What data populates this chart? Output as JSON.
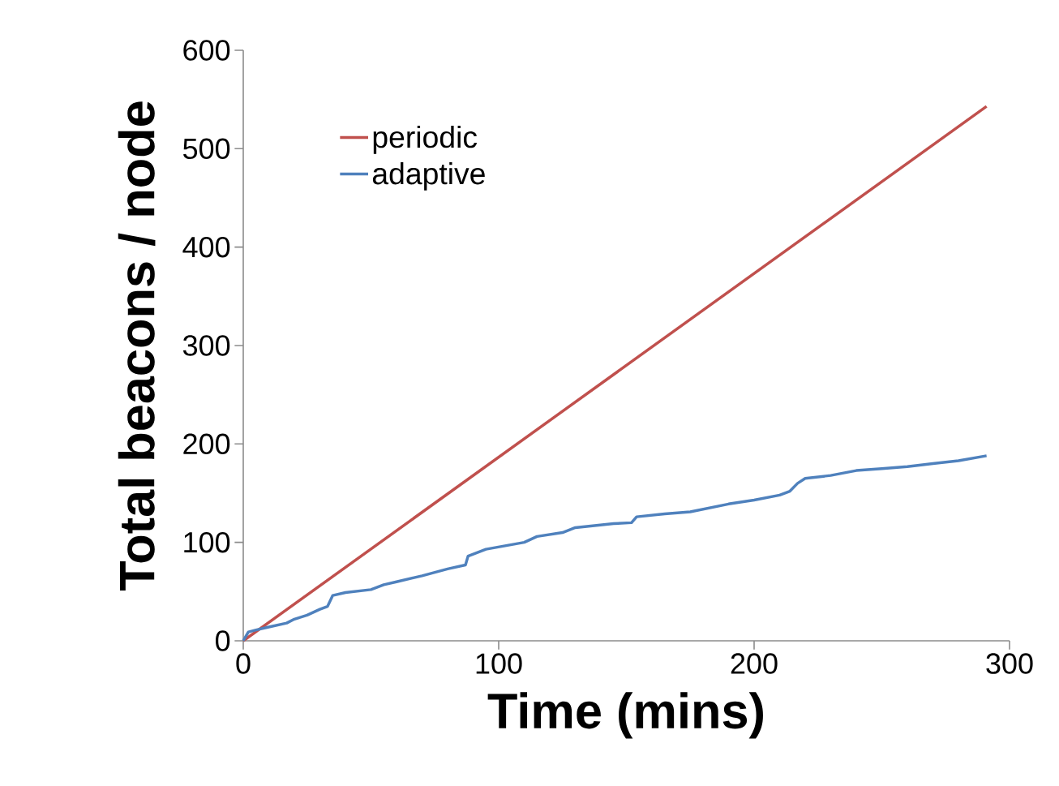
{
  "chart_data": {
    "type": "line",
    "xlabel": "Time (mins)",
    "ylabel": "Total beacons / node",
    "xlim": [
      0,
      300
    ],
    "ylim": [
      0,
      600
    ],
    "xticks": [
      0,
      100,
      200,
      300
    ],
    "yticks": [
      0,
      100,
      200,
      300,
      400,
      500,
      600
    ],
    "grid": false,
    "legend": "top left",
    "marker": "none",
    "line_style": "solid",
    "series": [
      {
        "name": "periodic",
        "color": "#c0504d",
        "x": [
          0,
          291
        ],
        "values": [
          0,
          543
        ]
      },
      {
        "name": "adaptive",
        "color": "#4f81bd",
        "x": [
          0,
          2,
          5,
          10,
          17,
          20,
          25,
          30,
          33,
          35,
          40,
          50,
          55,
          60,
          70,
          80,
          87,
          88,
          95,
          110,
          115,
          125,
          130,
          145,
          152,
          154,
          165,
          175,
          190,
          200,
          210,
          214,
          217,
          220,
          230,
          240,
          250,
          260,
          270,
          280,
          291
        ],
        "values": [
          0,
          9,
          11,
          14,
          18,
          22,
          26,
          32,
          35,
          46,
          49,
          52,
          57,
          60,
          66,
          73,
          77,
          86,
          93,
          100,
          106,
          110,
          115,
          119,
          120,
          126,
          129,
          131,
          139,
          143,
          148,
          152,
          160,
          165,
          168,
          173,
          175,
          177,
          180,
          183,
          188
        ]
      }
    ]
  }
}
